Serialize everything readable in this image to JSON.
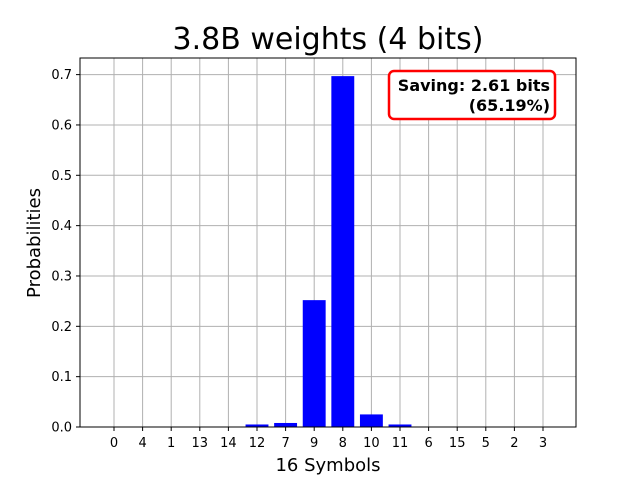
{
  "chart_data": {
    "type": "bar",
    "title": "3.8B weights (4 bits)",
    "xlabel": "16 Symbols",
    "ylabel": "Probabilities",
    "categories": [
      "0",
      "4",
      "1",
      "13",
      "14",
      "12",
      "7",
      "9",
      "8",
      "10",
      "11",
      "6",
      "15",
      "5",
      "2",
      "3"
    ],
    "values": [
      0.0002,
      0.0003,
      0.0004,
      0.0005,
      0.0006,
      0.005,
      0.008,
      0.252,
      0.697,
      0.025,
      0.005,
      0.0006,
      0.0005,
      0.0004,
      0.0003,
      0.0002
    ],
    "ylim": [
      0,
      0.733
    ],
    "yticks": [
      "0.0",
      "0.1",
      "0.2",
      "0.3",
      "0.4",
      "0.5",
      "0.6",
      "0.7"
    ],
    "grid": true,
    "bar_color": "#0000ff",
    "annotation": {
      "line1": "Saving: 2.61 bits",
      "line2": "(65.19%)",
      "border_color": "#ff0000",
      "placement": "top-right"
    }
  }
}
